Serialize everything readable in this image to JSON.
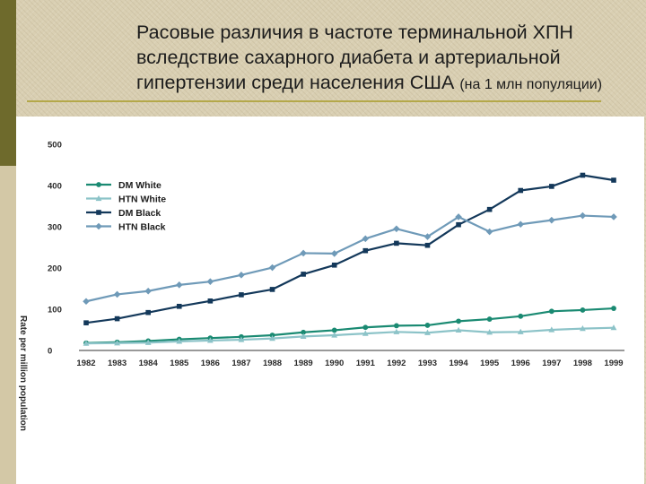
{
  "slide": {
    "title": "Расовые различия в частоте терминальной ХПН вследствие сахарного диабета и артериальной гипертензии среди населения США",
    "subtitle": "(на 1 млн популяции)"
  },
  "chart_data": {
    "type": "line",
    "title": "",
    "xlabel": "",
    "ylabel": "Rate per million population",
    "ylim": [
      0,
      500
    ],
    "yticks": [
      0,
      100,
      200,
      300,
      400,
      500
    ],
    "legend_position": "upper-left",
    "grid": false,
    "categories": [
      "1982",
      "1983",
      "1984",
      "1985",
      "1986",
      "1987",
      "1988",
      "1989",
      "1990",
      "1991",
      "1992",
      "1993",
      "1994",
      "1995",
      "1996",
      "1997",
      "1998",
      "1999"
    ],
    "series": [
      {
        "name": "DM White",
        "color": "#1a8a72",
        "marker": "circle",
        "values": [
          18,
          20,
          23,
          27,
          30,
          33,
          37,
          44,
          49,
          56,
          60,
          61,
          71,
          76,
          83,
          95,
          98,
          102
        ]
      },
      {
        "name": "HTN White",
        "color": "#8cc3c8",
        "marker": "triangle",
        "values": [
          17,
          18,
          19,
          22,
          24,
          26,
          29,
          34,
          37,
          41,
          45,
          43,
          49,
          44,
          45,
          50,
          53,
          55
        ]
      },
      {
        "name": "DM Black",
        "color": "#13385a",
        "marker": "square",
        "values": [
          67,
          77,
          92,
          107,
          120,
          135,
          148,
          185,
          207,
          242,
          260,
          255,
          305,
          342,
          388,
          398,
          425,
          413
        ]
      },
      {
        "name": "HTN Black",
        "color": "#6f9ab8",
        "marker": "diamond",
        "values": [
          119,
          136,
          144,
          159,
          167,
          183,
          201,
          236,
          235,
          271,
          295,
          276,
          324,
          288,
          306,
          316,
          327,
          324
        ]
      }
    ]
  }
}
